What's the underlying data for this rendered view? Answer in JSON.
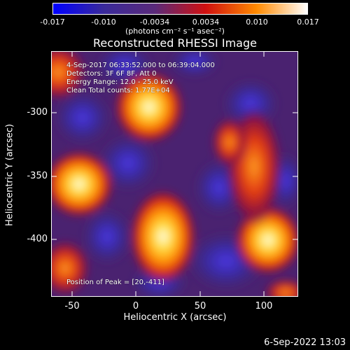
{
  "colorbar": {
    "ticks": [
      "-0.017",
      "-0.010",
      "-0.0034",
      "0.0034",
      "0.010",
      "0.017"
    ],
    "units": "(photons cm⁻² s⁻¹ asec⁻²)",
    "colors": [
      "#0000ff",
      "#3a2a9a",
      "#5a2a7a",
      "#d01010",
      "#ff8a00",
      "#ffffff"
    ]
  },
  "title": "Reconstructed RHESSI Image",
  "annotations": {
    "time": "4-Sep-2017 06:33:52.000 to 06:39:04.000",
    "detectors": "Detectors: 3F 6F 8F, Att 0",
    "energy": "Energy Range: 12.0 - 25.0 keV",
    "clean": "Clean     Total counts: 1.77E+04",
    "peak": "Position of Peak = [20,-411]"
  },
  "axes": {
    "xlabel": "Heliocentric X (arcsec)",
    "ylabel": "Heliocentric Y (arcsec)",
    "xticks": [
      "-50",
      "0",
      "50",
      "100"
    ],
    "yticks": [
      "-300",
      "-350",
      "-400"
    ]
  },
  "timestamp": "6-Sep-2022 13:03"
}
